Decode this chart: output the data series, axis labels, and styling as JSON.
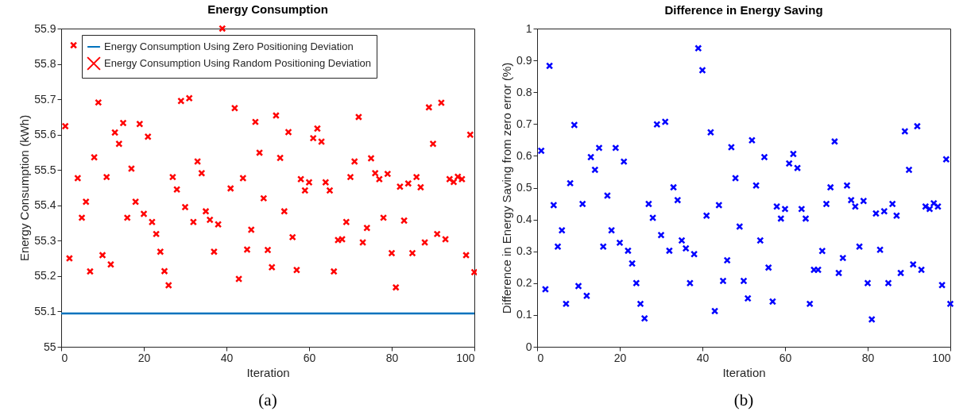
{
  "chart_data": [
    {
      "type": "scatter",
      "title": "Energy Consumption",
      "xlabel": "Iteration",
      "ylabel": "Energy Consumption (kWh)",
      "x": [
        1,
        2,
        3,
        4,
        5,
        6,
        7,
        8,
        9,
        10,
        11,
        12,
        13,
        14,
        15,
        16,
        17,
        18,
        19,
        20,
        21,
        22,
        23,
        24,
        25,
        26,
        27,
        28,
        29,
        30,
        31,
        32,
        33,
        34,
        35,
        36,
        37,
        38,
        39,
        40,
        41,
        42,
        43,
        44,
        45,
        46,
        47,
        48,
        49,
        50,
        51,
        52,
        53,
        54,
        55,
        56,
        57,
        58,
        59,
        60,
        61,
        62,
        63,
        64,
        65,
        66,
        67,
        68,
        69,
        70,
        71,
        72,
        73,
        74,
        75,
        76,
        77,
        78,
        79,
        80,
        81,
        82,
        83,
        84,
        85,
        86,
        87,
        88,
        89,
        90,
        91,
        92,
        93,
        94,
        95,
        96,
        97,
        98,
        99,
        100
      ],
      "series": [
        {
          "name": "Energy Consumption Using Zero Positioning Deviation",
          "type": "line",
          "marker": "none",
          "color": "#0072bd",
          "x": [
            0,
            100
          ],
          "values": [
            55.094,
            55.094
          ]
        },
        {
          "name": "Energy Consumption Using Random Positioning Deviation",
          "marker": "cross",
          "color": "#ff0000",
          "values": [
            55.624,
            55.25,
            55.853,
            55.477,
            55.365,
            55.41,
            55.213,
            55.536,
            55.691,
            55.259,
            55.48,
            55.233,
            55.606,
            55.574,
            55.633,
            55.365,
            55.504,
            55.41,
            55.63,
            55.376,
            55.594,
            55.353,
            55.319,
            55.269,
            55.214,
            55.174,
            55.48,
            55.445,
            55.695,
            55.395,
            55.703,
            55.353,
            55.524,
            55.491,
            55.383,
            55.359,
            55.269,
            55.346,
            55.9,
            null,
            55.448,
            55.675,
            55.192,
            55.477,
            55.275,
            55.331,
            55.636,
            55.549,
            55.42,
            55.274,
            55.225,
            55.654,
            55.534,
            55.383,
            55.607,
            55.31,
            55.217,
            55.474,
            55.442,
            55.465,
            55.59,
            55.617,
            55.58,
            55.465,
            55.442,
            55.213,
            55.302,
            55.304,
            55.353,
            55.48,
            55.524,
            55.65,
            55.295,
            55.336,
            55.533,
            55.491,
            55.474,
            55.365,
            55.489,
            55.265,
            55.168,
            55.453,
            55.357,
            55.462,
            55.265,
            55.48,
            55.451,
            55.295,
            55.677,
            55.574,
            55.319,
            55.69,
            55.304,
            55.474,
            55.466,
            55.481,
            55.474,
            55.259,
            55.6,
            55.211
          ]
        }
      ],
      "xlim": [
        0,
        100
      ],
      "ylim": [
        55,
        55.9
      ],
      "xticks": [
        0,
        20,
        40,
        60,
        80,
        100
      ],
      "yticks": [
        55,
        55.1,
        55.2,
        55.3,
        55.4,
        55.5,
        55.6,
        55.7,
        55.8,
        55.9
      ],
      "legend": "top left",
      "annotations": [
        "(a)"
      ]
    },
    {
      "type": "scatter",
      "title": "Difference in Energy Saving",
      "xlabel": "Iteration",
      "ylabel": "Difference in Energy Saving from zero error (%)",
      "x": [
        1,
        2,
        3,
        4,
        5,
        6,
        7,
        8,
        9,
        10,
        11,
        12,
        13,
        14,
        15,
        16,
        17,
        18,
        19,
        20,
        21,
        22,
        23,
        24,
        25,
        26,
        27,
        28,
        29,
        30,
        31,
        32,
        33,
        34,
        35,
        36,
        37,
        38,
        39,
        40,
        41,
        42,
        43,
        44,
        45,
        46,
        47,
        48,
        49,
        50,
        51,
        52,
        53,
        54,
        55,
        56,
        57,
        58,
        59,
        60,
        61,
        62,
        63,
        64,
        65,
        66,
        67,
        68,
        69,
        70,
        71,
        72,
        73,
        74,
        75,
        76,
        77,
        78,
        79,
        80,
        81,
        82,
        83,
        84,
        85,
        86,
        87,
        88,
        89,
        90,
        91,
        92,
        93,
        94,
        95,
        96,
        97,
        98,
        99,
        100
      ],
      "series": [
        {
          "marker": "cross",
          "color": "#0000ff",
          "values": [
            0.616,
            0.181,
            0.883,
            0.445,
            0.315,
            0.366,
            0.135,
            0.514,
            0.697,
            0.191,
            0.449,
            0.16,
            0.596,
            0.556,
            0.625,
            0.315,
            0.475,
            0.366,
            0.625,
            0.327,
            0.582,
            0.302,
            0.262,
            0.2,
            0.135,
            0.089,
            0.449,
            0.405,
            0.699,
            0.351,
            0.707,
            0.302,
            0.501,
            0.461,
            0.334,
            0.309,
            0.2,
            0.291,
            0.938,
            0.869,
            0.412,
            0.674,
            0.112,
            0.445,
            0.207,
            0.272,
            0.627,
            0.53,
            0.378,
            0.207,
            0.152,
            0.649,
            0.507,
            0.334,
            0.596,
            0.249,
            0.142,
            0.441,
            0.403,
            0.433,
            0.576,
            0.606,
            0.562,
            0.433,
            0.403,
            0.135,
            0.242,
            0.242,
            0.301,
            0.449,
            0.501,
            0.645,
            0.232,
            0.279,
            0.507,
            0.461,
            0.441,
            0.315,
            0.458,
            0.2,
            0.086,
            0.419,
            0.305,
            0.426,
            0.2,
            0.449,
            0.412,
            0.232,
            0.677,
            0.556,
            0.259,
            0.693,
            0.242,
            0.441,
            0.433,
            0.451,
            0.441,
            0.194,
            0.589,
            0.135
          ]
        }
      ],
      "xlim": [
        0,
        100
      ],
      "ylim": [
        0,
        1
      ],
      "xticks": [
        0,
        20,
        40,
        60,
        80,
        100
      ],
      "yticks": [
        0,
        0.1,
        0.2,
        0.3,
        0.4,
        0.5,
        0.6,
        0.7,
        0.8,
        0.9,
        1
      ],
      "annotations": [
        "(b)"
      ]
    }
  ]
}
